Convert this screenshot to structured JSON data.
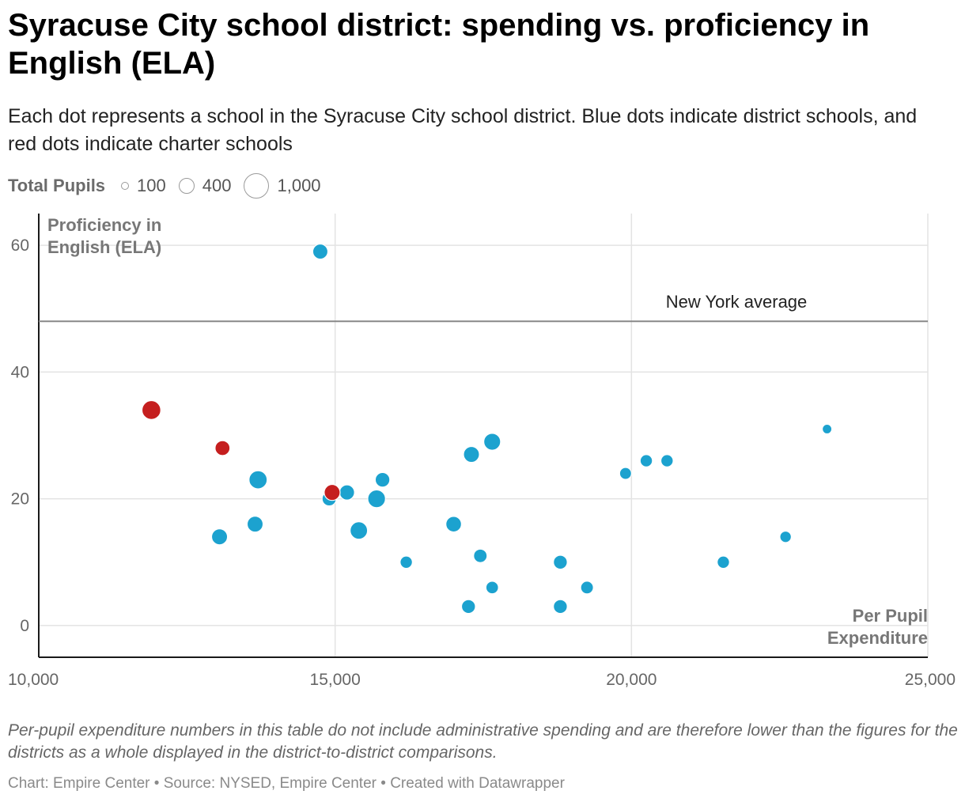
{
  "title": "Syracuse City school district: spending vs. proficiency in English (ELA)",
  "subtitle": "Each dot represents a school in the Syracuse City school district. Blue dots indicate district schools, and red dots indicate charter schools",
  "legend": {
    "title": "Total Pupils",
    "items": [
      {
        "label": "100",
        "value": 100
      },
      {
        "label": "400",
        "value": 400
      },
      {
        "label": "1,000",
        "value": 1000
      }
    ]
  },
  "notes": "Per-pupil expenditure numbers in this table do not include administrative spending and are therefore lower than the figures for the districts as a whole displayed in the district-to-district comparisons.",
  "byline": "Chart: Empire Center • Source: NYSED, Empire Center • Created with Datawrapper",
  "colors": {
    "district": "#1ca2cf",
    "charter": "#c51f1f",
    "grid": "#e3e3e3",
    "axis": "#1a1a1a",
    "reference": "#888888",
    "axis_title": "#777777"
  },
  "chart_data": {
    "type": "scatter",
    "x_title": "Per Pupil Expenditure",
    "y_title": "Proficiency in English (ELA)",
    "x_title_lines": [
      "Per Pupil",
      "Expenditure"
    ],
    "y_title_lines": [
      "Proficiency in",
      "English (ELA)"
    ],
    "xlim": [
      10000,
      25000
    ],
    "ylim": [
      -5,
      65
    ],
    "x_ticks": [
      {
        "value": 10000,
        "label": "10,000"
      },
      {
        "value": 15000,
        "label": "15,000"
      },
      {
        "value": 20000,
        "label": "20,000"
      },
      {
        "value": 25000,
        "label": "25,000"
      }
    ],
    "y_ticks": [
      {
        "value": 0,
        "label": "0"
      },
      {
        "value": 20,
        "label": "20"
      },
      {
        "value": 40,
        "label": "40"
      },
      {
        "value": 60,
        "label": "60"
      }
    ],
    "reference_line": {
      "value": 48,
      "label": "New York average"
    },
    "series": [
      {
        "name": "District schools",
        "color": "#1ca2cf",
        "points": [
          {
            "x": 14750,
            "y": 59,
            "pupils": 450
          },
          {
            "x": 13050,
            "y": 14,
            "pupils": 500
          },
          {
            "x": 13650,
            "y": 16,
            "pupils": 500
          },
          {
            "x": 13700,
            "y": 23,
            "pupils": 650
          },
          {
            "x": 14900,
            "y": 20,
            "pupils": 400
          },
          {
            "x": 15200,
            "y": 21,
            "pupils": 450
          },
          {
            "x": 15400,
            "y": 15,
            "pupils": 600
          },
          {
            "x": 15700,
            "y": 20,
            "pupils": 620
          },
          {
            "x": 15800,
            "y": 23,
            "pupils": 420
          },
          {
            "x": 16200,
            "y": 10,
            "pupils": 300
          },
          {
            "x": 17000,
            "y": 16,
            "pupils": 480
          },
          {
            "x": 17250,
            "y": 3,
            "pupils": 380
          },
          {
            "x": 17300,
            "y": 27,
            "pupils": 500
          },
          {
            "x": 17450,
            "y": 11,
            "pupils": 360
          },
          {
            "x": 17650,
            "y": 6,
            "pupils": 310
          },
          {
            "x": 17650,
            "y": 29,
            "pupils": 560
          },
          {
            "x": 18800,
            "y": 10,
            "pupils": 380
          },
          {
            "x": 18800,
            "y": 3,
            "pupils": 380
          },
          {
            "x": 19250,
            "y": 6,
            "pupils": 320
          },
          {
            "x": 19900,
            "y": 24,
            "pupils": 280
          },
          {
            "x": 20250,
            "y": 26,
            "pupils": 300
          },
          {
            "x": 20600,
            "y": 26,
            "pupils": 300
          },
          {
            "x": 21550,
            "y": 10,
            "pupils": 300
          },
          {
            "x": 22600,
            "y": 14,
            "pupils": 260
          },
          {
            "x": 23300,
            "y": 31,
            "pupils": 180
          }
        ]
      },
      {
        "name": "Charter schools",
        "color": "#c51f1f",
        "points": [
          {
            "x": 11900,
            "y": 34,
            "pupils": 700
          },
          {
            "x": 13100,
            "y": 28,
            "pupils": 440
          },
          {
            "x": 14950,
            "y": 21,
            "pupils": 500
          }
        ]
      }
    ]
  }
}
